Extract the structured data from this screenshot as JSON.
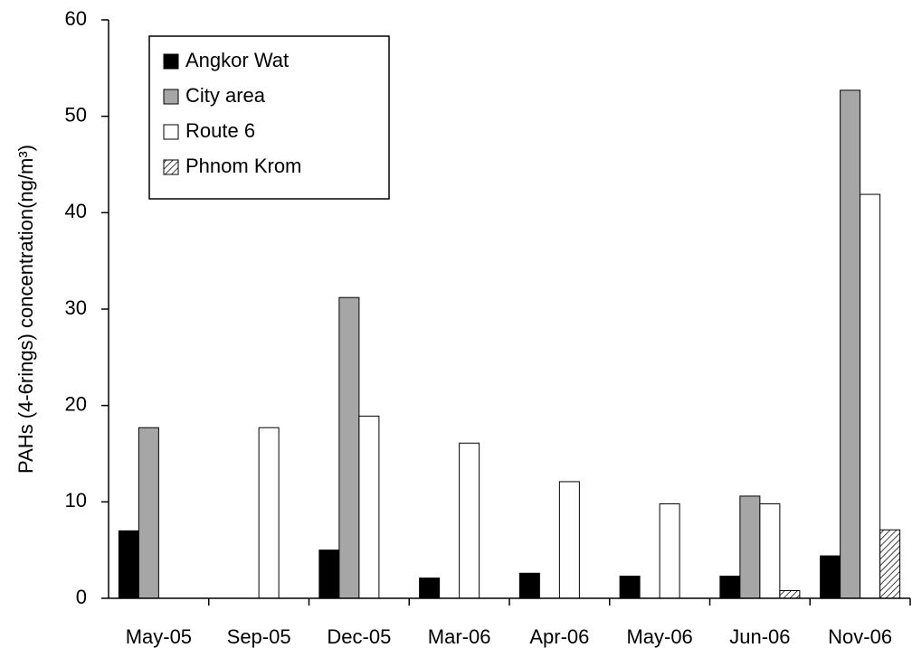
{
  "chart_data": {
    "type": "bar",
    "y_label": "PAHs (4-6rings) concentration(ng/m³)",
    "categories": [
      "May-05",
      "Sep-05",
      "Dec-05",
      "Mar-06",
      "Apr-06",
      "May-06",
      "Jun-06",
      "Nov-06"
    ],
    "series": [
      {
        "name": "Angkor Wat",
        "color": "#000000",
        "values": [
          7.0,
          null,
          5.0,
          2.1,
          2.6,
          2.3,
          2.3,
          4.4
        ]
      },
      {
        "name": "City area",
        "color": "#a6a6a6",
        "values": [
          17.7,
          null,
          31.2,
          null,
          null,
          null,
          10.6,
          52.7
        ]
      },
      {
        "name": "Route 6",
        "color": "#ffffff",
        "values": [
          null,
          17.7,
          18.9,
          16.1,
          12.1,
          9.8,
          9.8,
          41.9
        ]
      },
      {
        "name": "Phnom Krom",
        "color": "#ffffff",
        "hatch": true,
        "values": [
          null,
          null,
          null,
          null,
          null,
          null,
          0.8,
          7.1
        ]
      }
    ],
    "ylim": [
      0,
      60
    ],
    "yticks": [
      0,
      10,
      20,
      30,
      40,
      50,
      60
    ],
    "legend": "upper left"
  }
}
